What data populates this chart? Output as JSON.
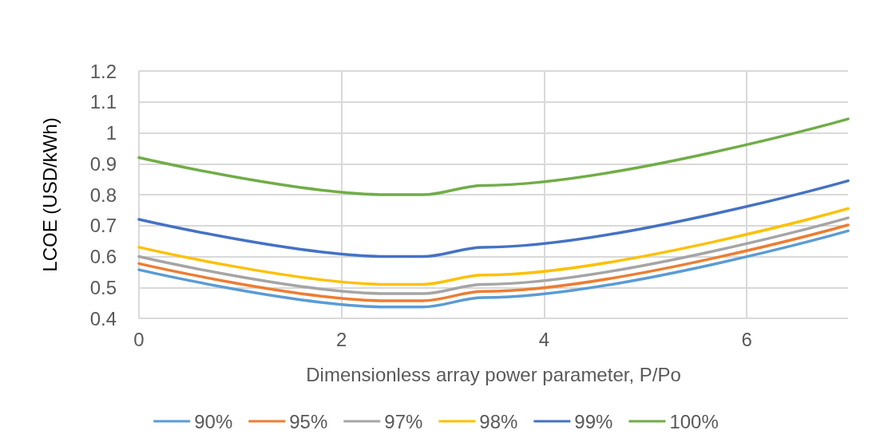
{
  "chart_data": {
    "type": "line",
    "xlabel": "Dimensionless array power parameter, P/Po",
    "ylabel": "LCOE (USD/kWh)",
    "x": [
      0,
      2.45,
      2.8,
      3.4,
      7
    ],
    "series": [
      {
        "name": "90%",
        "color": "#5b9bd5",
        "values": [
          0.557,
          0.437,
          0.437,
          0.467,
          0.683
        ]
      },
      {
        "name": "95%",
        "color": "#ed7d31",
        "values": [
          0.577,
          0.457,
          0.457,
          0.487,
          0.702
        ]
      },
      {
        "name": "97%",
        "color": "#a5a5a5",
        "values": [
          0.6,
          0.48,
          0.48,
          0.51,
          0.725
        ]
      },
      {
        "name": "98%",
        "color": "#ffc000",
        "values": [
          0.63,
          0.51,
          0.51,
          0.54,
          0.755
        ]
      },
      {
        "name": "99%",
        "color": "#4472c4",
        "values": [
          0.72,
          0.6,
          0.6,
          0.63,
          0.845
        ]
      },
      {
        "name": "100%",
        "color": "#70ad47",
        "values": [
          0.92,
          0.8,
          0.8,
          0.83,
          1.045
        ]
      }
    ],
    "xlim": [
      0,
      7
    ],
    "xticks": [
      0,
      2,
      4,
      6
    ],
    "ylim": [
      0.4,
      1.2
    ],
    "yticks": [
      0.4,
      0.5,
      0.6,
      0.7,
      0.8,
      0.9,
      1,
      1.1,
      1.2
    ],
    "grid": true,
    "legend": "bottom",
    "marker": "none",
    "line_style": "solid"
  }
}
